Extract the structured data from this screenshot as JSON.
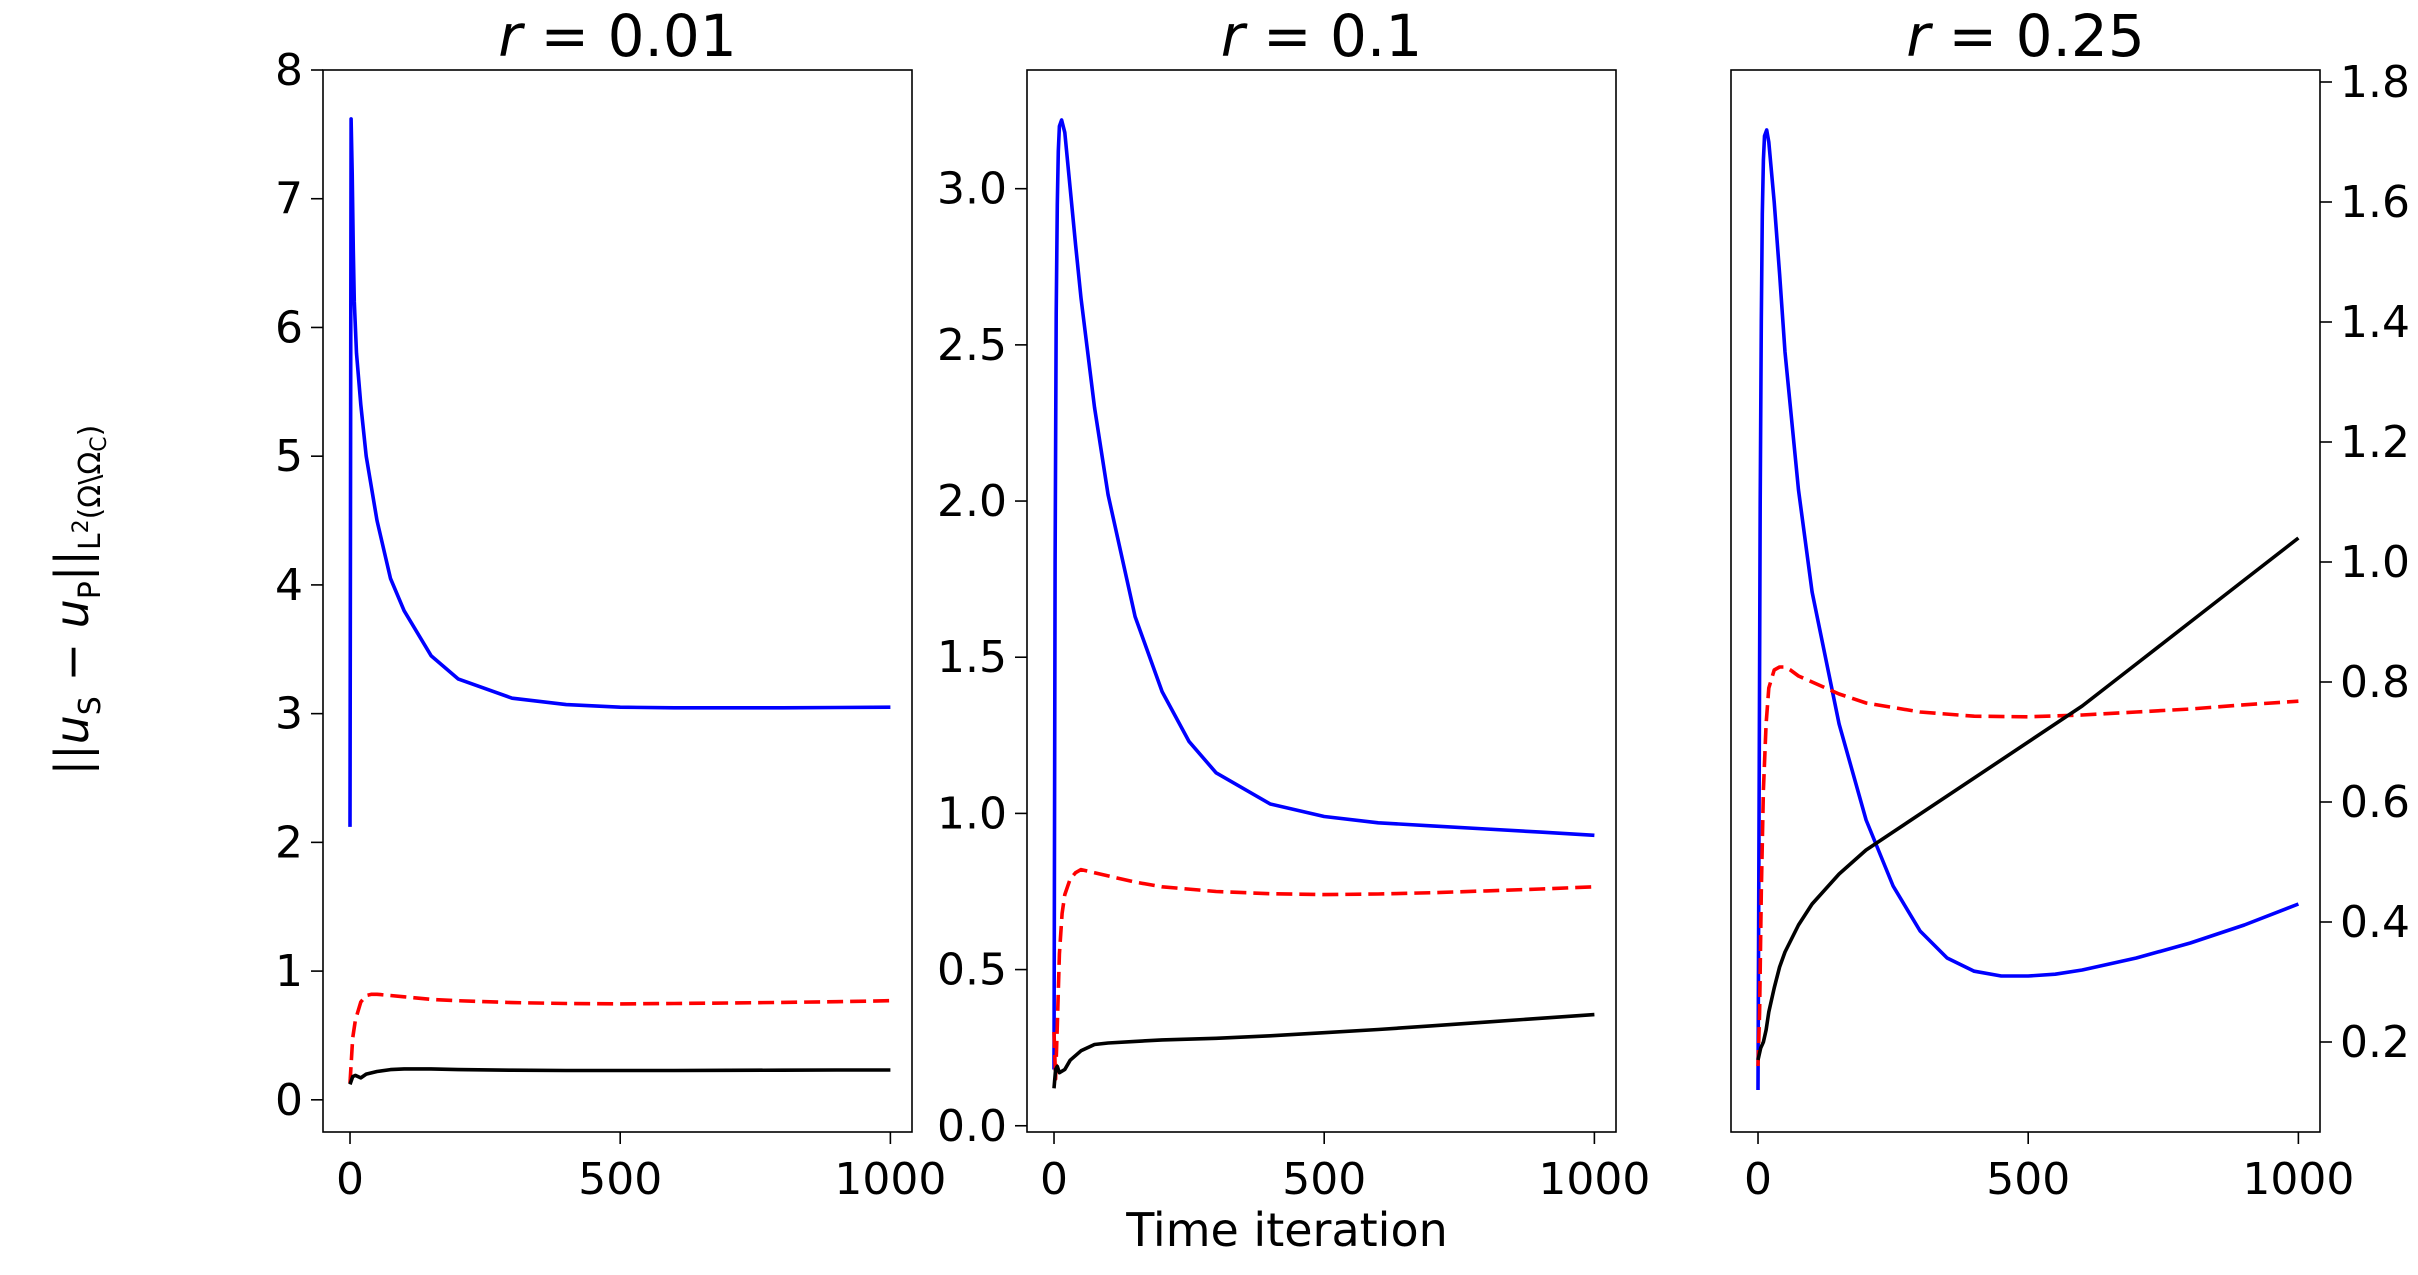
{
  "chart_data": [
    {
      "type": "line",
      "title_var": "r",
      "title_val": "= 0.01",
      "xlabel": "",
      "ylabel": "||u_S − u_P||_{L²(Ω\\Ω_C)}",
      "xlim": [
        -50,
        1040
      ],
      "ylim": [
        -0.25,
        8.0
      ],
      "xticks": [
        0,
        500,
        1000
      ],
      "xtick_labels": [
        "0",
        "500",
        "1000"
      ],
      "yticks": [
        0,
        1,
        2,
        3,
        4,
        5,
        6,
        7,
        8
      ],
      "ytick_labels": [
        "0",
        "1",
        "2",
        "3",
        "4",
        "5",
        "6",
        "7",
        "8"
      ],
      "y_axis_side": "left",
      "series": [
        {
          "name": "blue",
          "color": "#0000ff",
          "style": "solid",
          "x": [
            0,
            2,
            4,
            6,
            8,
            12,
            20,
            30,
            50,
            75,
            100,
            150,
            200,
            300,
            400,
            500,
            600,
            700,
            800,
            900,
            1000
          ],
          "y": [
            2.12,
            7.62,
            7.2,
            6.6,
            6.2,
            5.8,
            5.4,
            5.0,
            4.5,
            4.05,
            3.8,
            3.45,
            3.27,
            3.12,
            3.07,
            3.05,
            3.045,
            3.045,
            3.045,
            3.048,
            3.05
          ]
        },
        {
          "name": "red",
          "color": "#ff0000",
          "style": "dashed",
          "x": [
            0,
            5,
            10,
            20,
            30,
            40,
            50,
            75,
            100,
            150,
            200,
            300,
            400,
            500,
            600,
            700,
            800,
            900,
            1000
          ],
          "y": [
            0.13,
            0.48,
            0.62,
            0.76,
            0.81,
            0.82,
            0.82,
            0.81,
            0.8,
            0.78,
            0.77,
            0.755,
            0.748,
            0.745,
            0.748,
            0.752,
            0.757,
            0.762,
            0.77
          ]
        },
        {
          "name": "black",
          "color": "#000000",
          "style": "solid",
          "x": [
            0,
            5,
            10,
            20,
            30,
            50,
            75,
            100,
            150,
            200,
            300,
            400,
            500,
            600,
            700,
            800,
            900,
            1000
          ],
          "y": [
            0.12,
            0.18,
            0.19,
            0.17,
            0.2,
            0.22,
            0.235,
            0.24,
            0.24,
            0.235,
            0.23,
            0.228,
            0.228,
            0.228,
            0.229,
            0.23,
            0.232,
            0.232
          ]
        }
      ]
    },
    {
      "type": "line",
      "title_var": "r",
      "title_val": "= 0.1",
      "xlabel": "Time iteration",
      "ylabel": "",
      "xlim": [
        -50,
        1040
      ],
      "ylim": [
        -0.02,
        3.38
      ],
      "xticks": [
        0,
        500,
        1000
      ],
      "xtick_labels": [
        "0",
        "500",
        "1000"
      ],
      "yticks": [
        0.0,
        0.5,
        1.0,
        1.5,
        2.0,
        2.5,
        3.0
      ],
      "ytick_labels": [
        "0.0",
        "0.5",
        "1.0",
        "1.5",
        "2.0",
        "2.5",
        "3.0"
      ],
      "y_axis_side": "left",
      "series": [
        {
          "name": "blue",
          "color": "#0000ff",
          "style": "solid",
          "x": [
            0,
            2,
            4,
            6,
            8,
            10,
            14,
            20,
            30,
            40,
            50,
            75,
            100,
            150,
            200,
            250,
            300,
            400,
            500,
            600,
            700,
            800,
            900,
            1000
          ],
          "y": [
            0.18,
            1.8,
            2.6,
            2.95,
            3.12,
            3.2,
            3.22,
            3.18,
            3.0,
            2.82,
            2.65,
            2.3,
            2.02,
            1.63,
            1.39,
            1.23,
            1.13,
            1.03,
            0.99,
            0.97,
            0.96,
            0.95,
            0.94,
            0.93
          ]
        },
        {
          "name": "red",
          "color": "#ff0000",
          "style": "dashed",
          "x": [
            0,
            3,
            6,
            10,
            15,
            20,
            30,
            40,
            50,
            75,
            100,
            150,
            200,
            300,
            400,
            500,
            600,
            700,
            800,
            900,
            1000
          ],
          "y": [
            0.3,
            0.15,
            0.32,
            0.55,
            0.68,
            0.74,
            0.79,
            0.81,
            0.82,
            0.81,
            0.8,
            0.78,
            0.765,
            0.75,
            0.743,
            0.74,
            0.742,
            0.746,
            0.752,
            0.758,
            0.765
          ]
        },
        {
          "name": "black",
          "color": "#000000",
          "style": "solid",
          "x": [
            0,
            3,
            6,
            10,
            20,
            30,
            50,
            75,
            100,
            150,
            200,
            300,
            400,
            500,
            600,
            700,
            800,
            900,
            1000
          ],
          "y": [
            0.12,
            0.18,
            0.19,
            0.17,
            0.18,
            0.21,
            0.24,
            0.26,
            0.265,
            0.27,
            0.275,
            0.28,
            0.288,
            0.298,
            0.308,
            0.32,
            0.332,
            0.344,
            0.356
          ]
        }
      ]
    },
    {
      "type": "line",
      "title_var": "r",
      "title_val": "= 0.25",
      "xlabel": "",
      "ylabel": "",
      "xlim": [
        -50,
        1040
      ],
      "ylim": [
        0.05,
        1.82
      ],
      "xticks": [
        0,
        500,
        1000
      ],
      "xtick_labels": [
        "0",
        "500",
        "1000"
      ],
      "yticks": [
        0.2,
        0.4,
        0.6,
        0.8,
        1.0,
        1.2,
        1.4,
        1.6,
        1.8
      ],
      "ytick_labels": [
        "0.2",
        "0.4",
        "0.6",
        "0.8",
        "1.0",
        "1.2",
        "1.4",
        "1.6",
        "1.8"
      ],
      "y_axis_side": "right",
      "series": [
        {
          "name": "blue",
          "color": "#0000ff",
          "style": "solid",
          "x": [
            0,
            2,
            4,
            6,
            8,
            10,
            12,
            16,
            20,
            30,
            40,
            50,
            75,
            100,
            150,
            200,
            250,
            300,
            350,
            400,
            450,
            500,
            550,
            600,
            700,
            800,
            900,
            1000
          ],
          "y": [
            0.12,
            0.6,
            1.1,
            1.4,
            1.58,
            1.67,
            1.71,
            1.72,
            1.7,
            1.6,
            1.48,
            1.35,
            1.12,
            0.95,
            0.73,
            0.57,
            0.46,
            0.385,
            0.34,
            0.318,
            0.31,
            0.31,
            0.313,
            0.32,
            0.34,
            0.365,
            0.395,
            0.43
          ]
        },
        {
          "name": "red",
          "color": "#ff0000",
          "style": "dashed",
          "x": [
            0,
            3,
            6,
            10,
            15,
            20,
            30,
            40,
            50,
            60,
            75,
            100,
            150,
            200,
            300,
            400,
            500,
            600,
            700,
            800,
            900,
            1000
          ],
          "y": [
            0.16,
            0.25,
            0.45,
            0.62,
            0.73,
            0.79,
            0.82,
            0.825,
            0.825,
            0.82,
            0.81,
            0.8,
            0.78,
            0.765,
            0.75,
            0.743,
            0.742,
            0.745,
            0.75,
            0.755,
            0.762,
            0.768
          ]
        },
        {
          "name": "black",
          "color": "#000000",
          "style": "solid",
          "x": [
            0,
            5,
            10,
            15,
            20,
            30,
            40,
            50,
            75,
            100,
            150,
            200,
            250,
            300,
            400,
            500,
            600,
            700,
            800,
            900,
            1000
          ],
          "y": [
            0.17,
            0.19,
            0.2,
            0.22,
            0.25,
            0.29,
            0.325,
            0.35,
            0.395,
            0.43,
            0.48,
            0.52,
            0.55,
            0.58,
            0.64,
            0.7,
            0.76,
            0.83,
            0.9,
            0.97,
            1.04
          ]
        }
      ]
    }
  ]
}
